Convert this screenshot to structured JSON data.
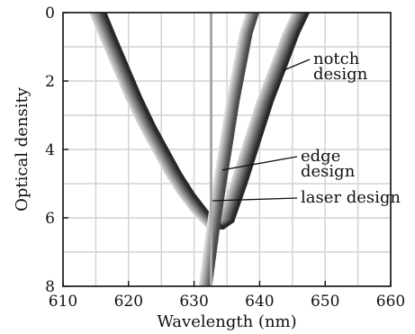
{
  "chart_data": {
    "type": "line",
    "title": "",
    "xlabel": "Wavelength (nm)",
    "ylabel": "Optical density",
    "xlim": [
      610,
      660
    ],
    "ylim": [
      0,
      8
    ],
    "y_inverted": true,
    "x_ticks": [
      610,
      620,
      630,
      640,
      650,
      660
    ],
    "y_ticks": [
      0,
      2,
      4,
      6,
      8
    ],
    "grid": true,
    "colors": {
      "axis": "#111111",
      "grid": "#d2d2d2",
      "band_dark": "#2a2a2a",
      "band_light": "#d8d8d8",
      "laser": "#a8a8a8"
    },
    "series": [
      {
        "name": "notch design",
        "x": [
          614.5,
          616,
          618,
          620,
          622,
          624,
          626,
          628,
          630,
          631.5,
          632.5,
          634,
          636,
          638,
          640,
          642,
          644,
          645.5
        ],
        "y": [
          0,
          0.7,
          1.6,
          2.5,
          3.3,
          4.0,
          4.7,
          5.3,
          5.8,
          6.1,
          6.3,
          6.1,
          5.0,
          3.8,
          2.6,
          1.6,
          0.6,
          0
        ]
      },
      {
        "name": "edge design",
        "x": [
          631.3,
          632.5,
          633.5,
          634.5,
          635.5,
          636.5,
          637.5,
          638.5
        ],
        "y": [
          8,
          6.3,
          5.0,
          3.8,
          2.6,
          1.6,
          0.6,
          0
        ]
      },
      {
        "name": "laser design",
        "x": [
          632.6,
          632.6
        ],
        "y": [
          0,
          8
        ]
      }
    ],
    "annotations": [
      {
        "lines": [
          "notch",
          "design"
        ],
        "x": 643.5,
        "y": 1.7
      },
      {
        "lines": [
          "edge",
          "design"
        ],
        "x": 634.3,
        "y": 4.6
      },
      {
        "lines": [
          "laser design"
        ],
        "x": 632.8,
        "y": 5.5
      }
    ]
  }
}
